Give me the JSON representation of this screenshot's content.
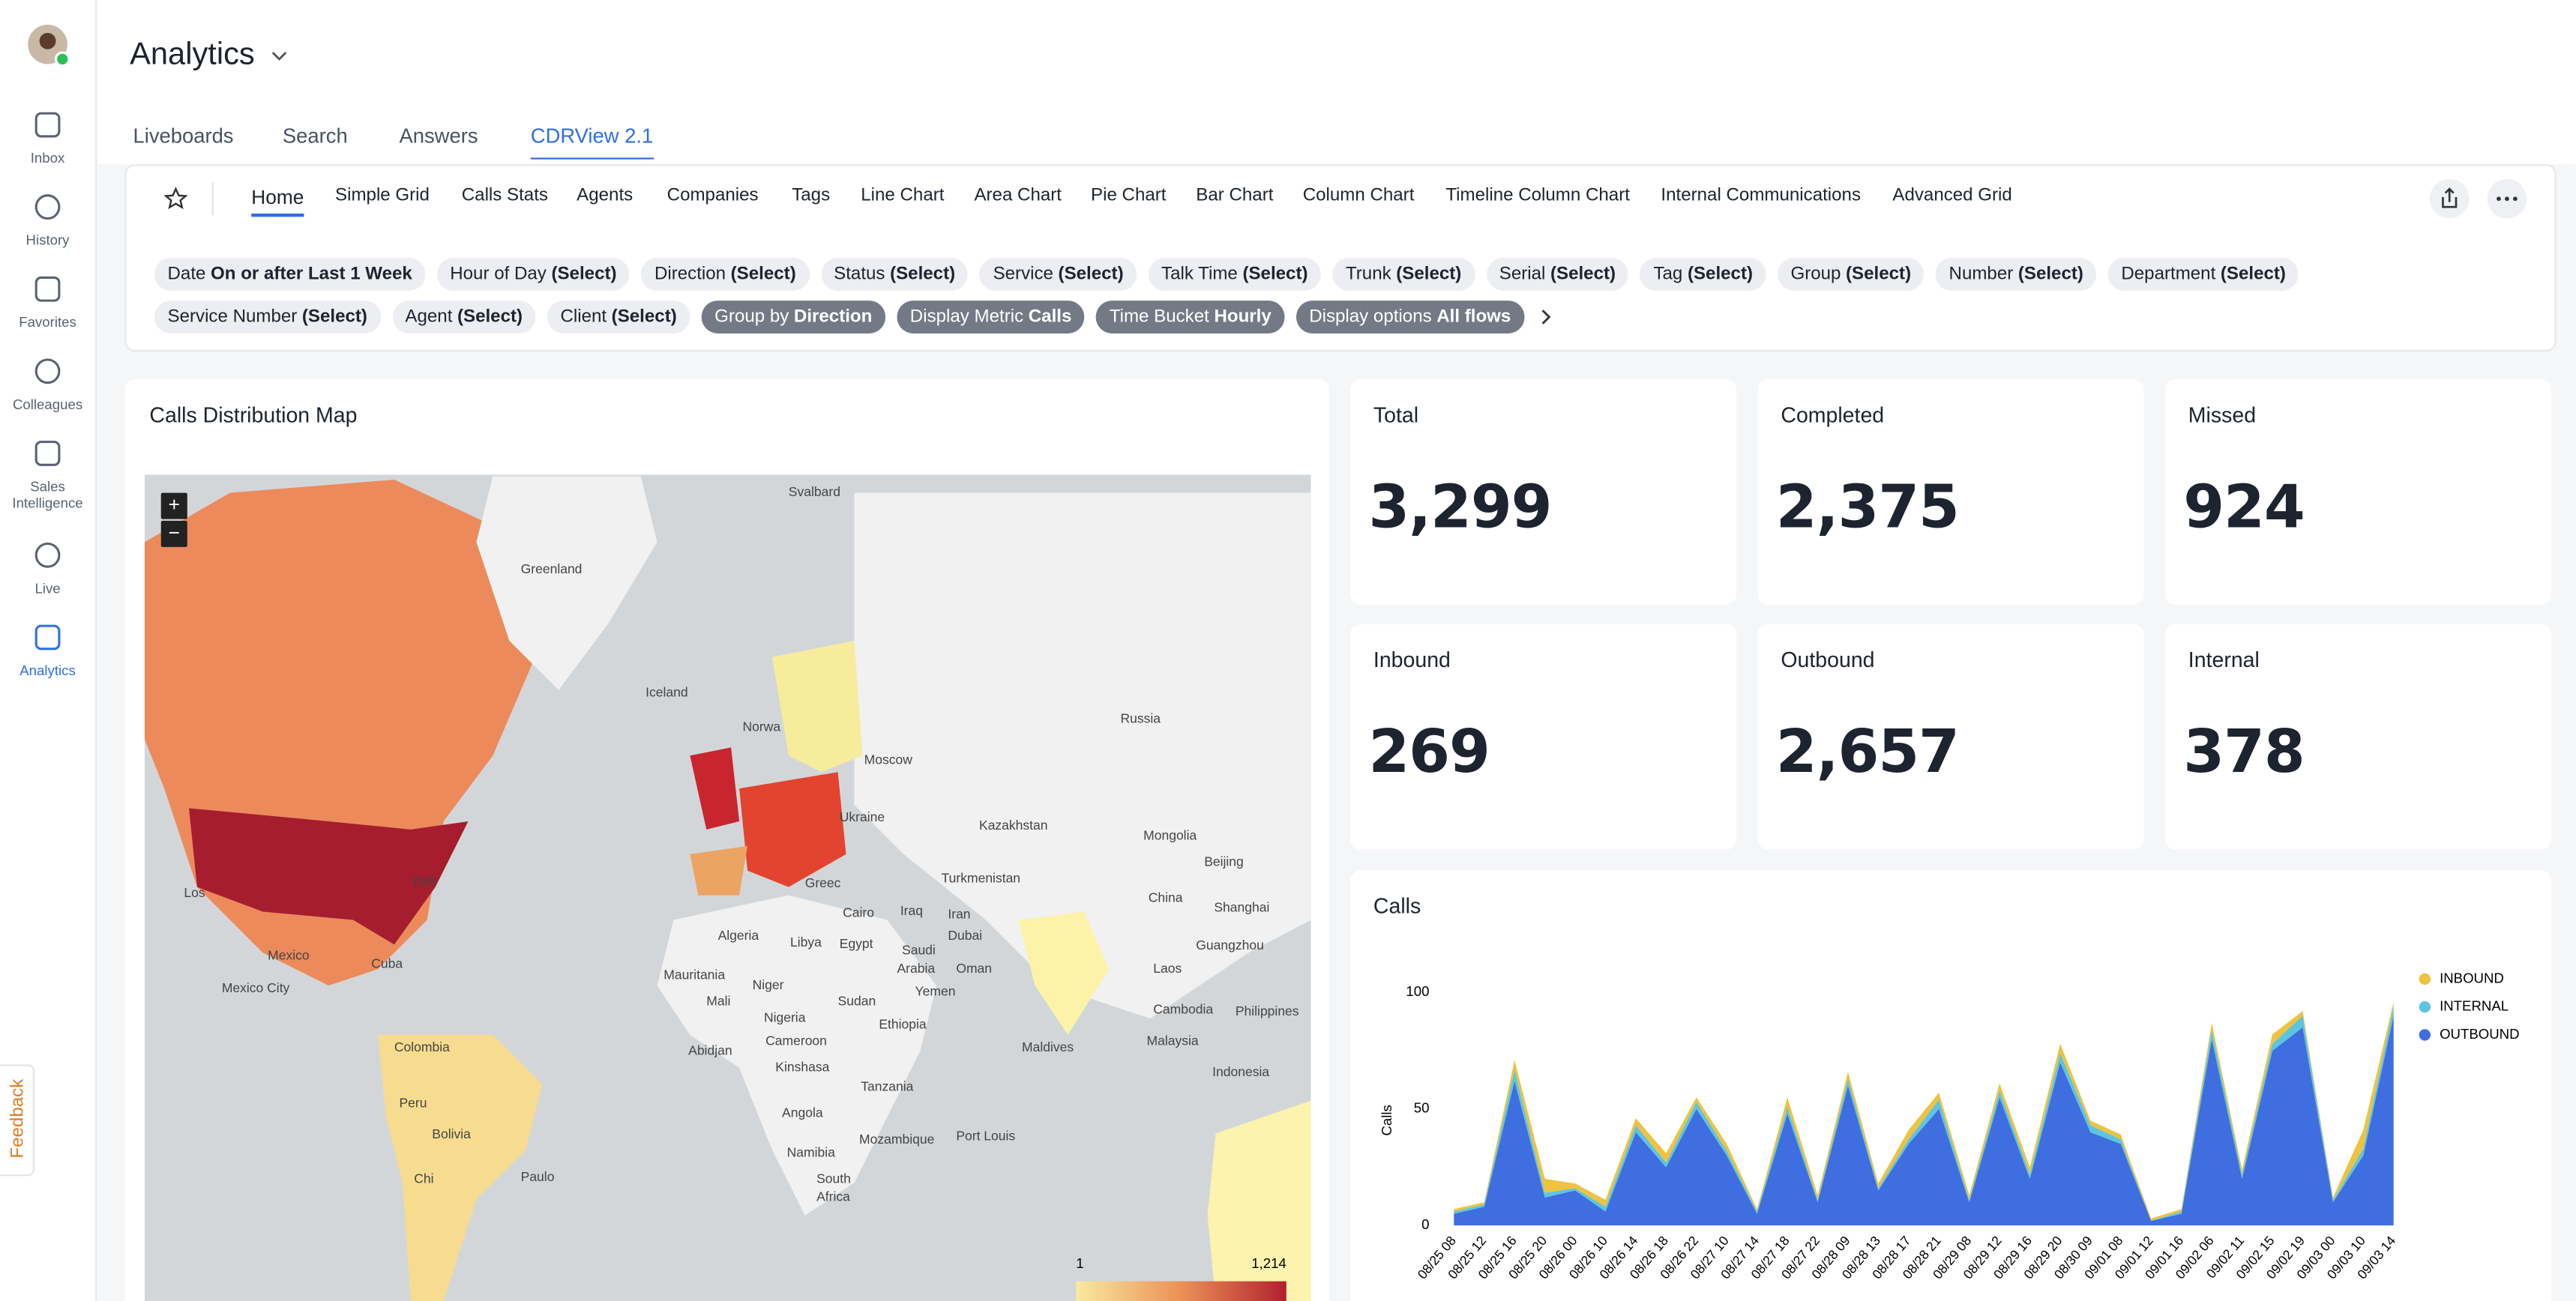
{
  "sidebar": {
    "items": [
      "Inbox",
      "History",
      "Favorites",
      "Colleagues",
      "Sales Intelligence",
      "Live",
      "Analytics"
    ]
  },
  "feedback": "Feedback",
  "header": {
    "title": "Analytics",
    "tabs": [
      "Liveboards",
      "Search",
      "Answers",
      "CDRView 2.1"
    ]
  },
  "liveboard": {
    "tabs": [
      "Home",
      "Simple Grid",
      "Calls Stats",
      "Agents",
      "Companies",
      "Tags",
      "Line Chart",
      "Area Chart",
      "Pie Chart",
      "Bar Chart",
      "Column Chart",
      "Timeline Column Chart",
      "Internal Communications",
      "Advanced Grid"
    ],
    "filters": [
      {
        "label": "Date",
        "value": "On or after Last 1 Week"
      },
      {
        "label": "Hour of Day",
        "value": "(Select)"
      },
      {
        "label": "Direction",
        "value": "(Select)"
      },
      {
        "label": "Status",
        "value": "(Select)"
      },
      {
        "label": "Service",
        "value": "(Select)"
      },
      {
        "label": "Talk Time",
        "value": "(Select)"
      },
      {
        "label": "Trunk",
        "value": "(Select)"
      },
      {
        "label": "Serial",
        "value": "(Select)"
      },
      {
        "label": "Tag",
        "value": "(Select)"
      },
      {
        "label": "Group",
        "value": "(Select)"
      },
      {
        "label": "Number",
        "value": "(Select)"
      },
      {
        "label": "Department",
        "value": "(Select)"
      },
      {
        "label": "Service Number",
        "value": "(Select)"
      },
      {
        "label": "Agent",
        "value": "(Select)"
      },
      {
        "label": "Client",
        "value": "(Select)"
      }
    ],
    "options": [
      {
        "label": "Group by",
        "value": "Direction"
      },
      {
        "label": "Display Metric",
        "value": "Calls"
      },
      {
        "label": "Time Bucket",
        "value": "Hourly"
      },
      {
        "label": "Display options",
        "value": "All flows"
      }
    ]
  },
  "map": {
    "title": "Calls Distribution Map",
    "zoom_in": "+",
    "zoom_out": "−",
    "labels": [
      "Svalbard",
      "Greenland",
      "Iceland",
      "Norwa",
      "Russia",
      "Moscow",
      "Ukraine",
      "Kazakhstan",
      "Mongolia",
      "Beijing",
      "China",
      "Shanghai",
      "Turkmenistan",
      "Iraq",
      "Iran",
      "Cairo",
      "Egypt",
      "Libya",
      "Algeria",
      "Greec",
      "Saudi",
      "Arabia",
      "Dubai",
      "Oman",
      "Yemen",
      "Sudan",
      "Ethiopia",
      "Niger",
      "Nigeria",
      "Mauritania",
      "Mali",
      "Abidjan",
      "Cameroon",
      "Kinshasa",
      "Tanzania",
      "Angola",
      "Namibia",
      "Mozambique",
      "South",
      "Africa",
      "Port Louis",
      "Maldives",
      "Guangzhou",
      "Laos",
      "Cambodia",
      "Philippines",
      "Malaysia",
      "Indonesia",
      "Mexico",
      "Mexico City",
      "Cuba",
      "Colombia",
      "Peru",
      "Bolivia",
      "Paulo",
      "Chi",
      "York",
      "Los"
    ],
    "legend": [
      "1",
      "1,214"
    ]
  },
  "kpis": [
    {
      "title": "Total",
      "value": "3,299"
    },
    {
      "title": "Completed",
      "value": "2,375"
    },
    {
      "title": "Missed",
      "value": "924"
    },
    {
      "title": "Inbound",
      "value": "269"
    },
    {
      "title": "Outbound",
      "value": "2,657"
    },
    {
      "title": "Internal",
      "value": "378"
    }
  ],
  "chart_data": {
    "type": "area",
    "title": "Calls",
    "y_label": "Calls",
    "stacked": true,
    "categories": [
      "08/25 08",
      "08/25 12",
      "08/25 16",
      "08/25 20",
      "08/26 00",
      "08/26 10",
      "08/26 14",
      "08/26 18",
      "08/26 22",
      "08/27 10",
      "08/27 14",
      "08/27 18",
      "08/27 22",
      "08/28 09",
      "08/28 13",
      "08/28 17",
      "08/28 21",
      "08/29 08",
      "08/29 12",
      "08/29 16",
      "08/29 20",
      "08/30 09",
      "09/01 08",
      "09/01 12",
      "09/01 16",
      "09/02 06",
      "09/02 11",
      "09/02 15",
      "09/02 19",
      "09/03 00",
      "09/03 10",
      "09/03 14"
    ],
    "series": [
      {
        "name": "INBOUND",
        "color": "#efc23f",
        "values": [
          1,
          1,
          4,
          6,
          2,
          3,
          3,
          4,
          2,
          3,
          1,
          4,
          2,
          3,
          2,
          4,
          3,
          2,
          3,
          3,
          4,
          2,
          2,
          1,
          1,
          3,
          2,
          4,
          2,
          1,
          8,
          2
        ]
      },
      {
        "name": "INTERNAL",
        "color": "#5dc5df",
        "values": [
          1,
          1,
          5,
          2,
          1,
          2,
          3,
          2,
          3,
          2,
          1,
          3,
          1,
          3,
          1,
          2,
          4,
          1,
          3,
          2,
          4,
          3,
          2,
          0,
          1,
          4,
          2,
          3,
          5,
          1,
          3,
          4
        ]
      },
      {
        "name": "OUTBOUND",
        "color": "#3e6ee0",
        "values": [
          5,
          8,
          62,
          12,
          15,
          6,
          40,
          25,
          50,
          30,
          5,
          48,
          10,
          60,
          15,
          35,
          50,
          10,
          55,
          20,
          70,
          40,
          35,
          2,
          5,
          80,
          20,
          75,
          85,
          10,
          30,
          90
        ]
      }
    ],
    "ylim": [
      0,
      110
    ],
    "yticks": [
      0,
      50,
      100
    ],
    "legend": "top-right"
  }
}
